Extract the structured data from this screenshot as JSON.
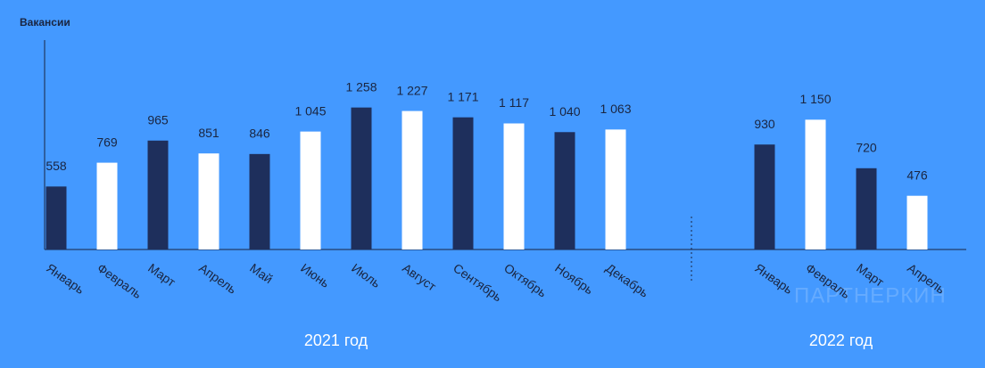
{
  "chart_data": {
    "type": "bar",
    "y_label": "Вакансии",
    "watermark": "ПАРТНЕРКИН",
    "colors": [
      "#1e2f5c",
      "#ffffff"
    ],
    "ylim": [
      0,
      1500
    ],
    "groups": [
      {
        "name": "2021 год",
        "categories": [
          "Январь",
          "Февраль",
          "Март",
          "Апрель",
          "Май",
          "Июнь",
          "Июль",
          "Август",
          "Сентябрь",
          "Октябрь",
          "Ноябрь",
          "Декабрь"
        ],
        "values": [
          558,
          769,
          965,
          851,
          846,
          1045,
          1258,
          1227,
          1171,
          1117,
          1040,
          1063
        ],
        "value_labels": [
          "558",
          "769",
          "965",
          "851",
          "846",
          "1 045",
          "1 258",
          "1 227",
          "1 171",
          "1 117",
          "1 040",
          "1 063"
        ]
      },
      {
        "name": "2022 год",
        "categories": [
          "Январь",
          "Февраль",
          "Март",
          "Апрель"
        ],
        "values": [
          930,
          1150,
          720,
          476
        ],
        "value_labels": [
          "930",
          "1 150",
          "720",
          "476"
        ]
      }
    ]
  }
}
